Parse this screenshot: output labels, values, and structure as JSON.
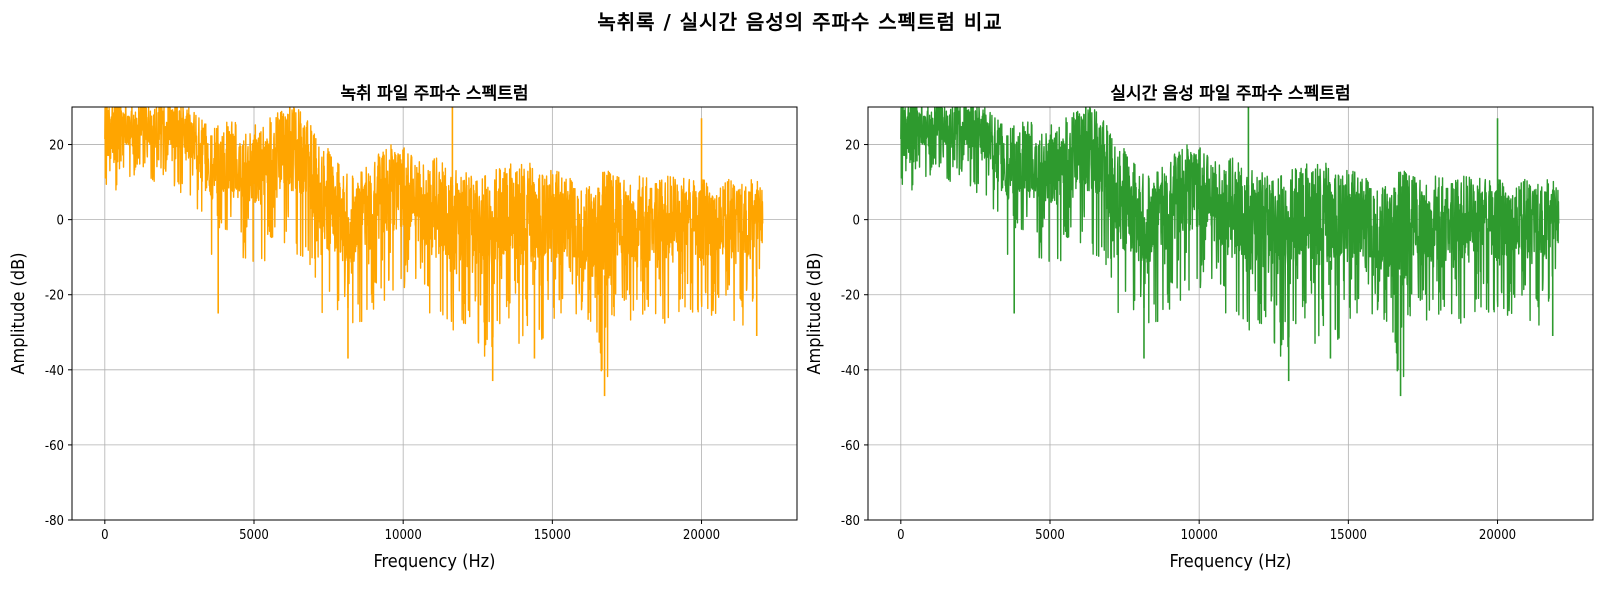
{
  "figure": {
    "suptitle": "녹취록 / 실시간 음성의 주파수 스펙트럼 비교"
  },
  "chart_data": [
    {
      "type": "line",
      "title": "녹취 파일 주파수 스펙트럼",
      "xlabel": "Frequency (Hz)",
      "ylabel": "Amplitude (dB)",
      "xlim": [
        -1100,
        23200
      ],
      "ylim": [
        -80,
        30
      ],
      "xticks": [
        0,
        5000,
        10000,
        15000,
        20000
      ],
      "yticks": [
        -80,
        -60,
        -40,
        -20,
        0,
        20
      ],
      "grid": true,
      "color": "#FFA500",
      "series": [
        {
          "x": [
            0,
            150,
            300,
            500,
            800,
            1200,
            1600,
            2000,
            2400,
            2800,
            3200,
            3600,
            4000,
            4400,
            4800,
            5200,
            5600,
            6000,
            6400,
            6800,
            7200,
            7600,
            8000,
            8400,
            8800,
            9200,
            9600,
            10000,
            10400,
            10800,
            11200,
            11600,
            12000,
            12400,
            12800,
            13200,
            13600,
            14000,
            14400,
            14800,
            15200,
            15600,
            16000,
            16400,
            16800,
            17200,
            17600,
            18000,
            18400,
            18800,
            19200,
            19600,
            20000,
            20400,
            20800,
            21200,
            21600,
            22050
          ],
          "upper": [
            35,
            30,
            32,
            34,
            30,
            32,
            31,
            33,
            31,
            30,
            27,
            24,
            28,
            26,
            24,
            26,
            28,
            29,
            30,
            27,
            22,
            18,
            14,
            12,
            15,
            18,
            20,
            20,
            18,
            14,
            18,
            12,
            15,
            12,
            13,
            14,
            15,
            16,
            15,
            13,
            14,
            12,
            8,
            10,
            15,
            12,
            10,
            12,
            10,
            12,
            11,
            12,
            11,
            10,
            11,
            10,
            12,
            10
          ],
          "lower": [
            10,
            5,
            2,
            14,
            10,
            14,
            10,
            10,
            8,
            5,
            -2,
            -10,
            -10,
            -8,
            -12,
            -12,
            -10,
            -8,
            -12,
            -14,
            -25,
            -33,
            -37,
            -30,
            -28,
            -25,
            -22,
            -20,
            -22,
            -25,
            -28,
            -30,
            -28,
            -32,
            -40,
            -30,
            -28,
            -35,
            -37,
            -30,
            -32,
            -36,
            -35,
            -37,
            -45,
            -30,
            -32,
            -25,
            -28,
            -30,
            -25,
            -28,
            -30,
            -25,
            -28,
            -28,
            -30,
            -12
          ],
          "spikes": [
            {
              "x": 3800,
              "y": -25
            },
            {
              "x": 6200,
              "y": 32
            },
            {
              "x": 8150,
              "y": -37
            },
            {
              "x": 11650,
              "y": 30
            },
            {
              "x": 13000,
              "y": -43
            },
            {
              "x": 14400,
              "y": -37
            },
            {
              "x": 16750,
              "y": -47
            },
            {
              "x": 20000,
              "y": 27
            },
            {
              "x": 21850,
              "y": -31
            }
          ]
        }
      ]
    },
    {
      "type": "line",
      "title": "실시간 음성 파일 주파수 스펙트럼",
      "xlabel": "Frequency (Hz)",
      "ylabel": "Amplitude (dB)",
      "xlim": [
        -1100,
        23200
      ],
      "ylim": [
        -80,
        30
      ],
      "xticks": [
        0,
        5000,
        10000,
        15000,
        20000
      ],
      "yticks": [
        -80,
        -60,
        -40,
        -20,
        0,
        20
      ],
      "grid": true,
      "color": "#2E9A2E",
      "series": [
        {
          "x": [
            0,
            150,
            300,
            500,
            800,
            1200,
            1600,
            2000,
            2400,
            2800,
            3200,
            3600,
            4000,
            4400,
            4800,
            5200,
            5600,
            6000,
            6400,
            6800,
            7200,
            7600,
            8000,
            8400,
            8800,
            9200,
            9600,
            10000,
            10400,
            10800,
            11200,
            11600,
            12000,
            12400,
            12800,
            13200,
            13600,
            14000,
            14400,
            14800,
            15200,
            15600,
            16000,
            16400,
            16800,
            17200,
            17600,
            18000,
            18400,
            18800,
            19200,
            19600,
            20000,
            20400,
            20800,
            21200,
            21600,
            22050
          ],
          "upper": [
            35,
            30,
            32,
            34,
            30,
            32,
            31,
            33,
            31,
            30,
            27,
            24,
            28,
            26,
            24,
            26,
            28,
            29,
            30,
            27,
            22,
            18,
            14,
            12,
            15,
            18,
            20,
            20,
            18,
            14,
            18,
            12,
            15,
            12,
            13,
            14,
            15,
            16,
            15,
            13,
            14,
            12,
            8,
            10,
            15,
            12,
            10,
            12,
            10,
            12,
            11,
            12,
            11,
            10,
            11,
            10,
            12,
            10
          ],
          "lower": [
            10,
            5,
            2,
            14,
            10,
            14,
            10,
            10,
            8,
            5,
            -2,
            -10,
            -10,
            -8,
            -12,
            -12,
            -10,
            -8,
            -12,
            -14,
            -25,
            -33,
            -37,
            -30,
            -28,
            -25,
            -22,
            -20,
            -22,
            -25,
            -28,
            -30,
            -28,
            -32,
            -40,
            -30,
            -28,
            -35,
            -37,
            -30,
            -32,
            -36,
            -35,
            -37,
            -45,
            -30,
            -32,
            -25,
            -28,
            -30,
            -25,
            -28,
            -30,
            -25,
            -28,
            -28,
            -30,
            -12
          ],
          "spikes": [
            {
              "x": 3800,
              "y": -25
            },
            {
              "x": 6200,
              "y": 32
            },
            {
              "x": 8150,
              "y": -37
            },
            {
              "x": 11650,
              "y": 30
            },
            {
              "x": 13000,
              "y": -43
            },
            {
              "x": 14400,
              "y": -37
            },
            {
              "x": 16750,
              "y": -47
            },
            {
              "x": 20000,
              "y": 27
            },
            {
              "x": 21850,
              "y": -31
            }
          ]
        }
      ]
    }
  ]
}
